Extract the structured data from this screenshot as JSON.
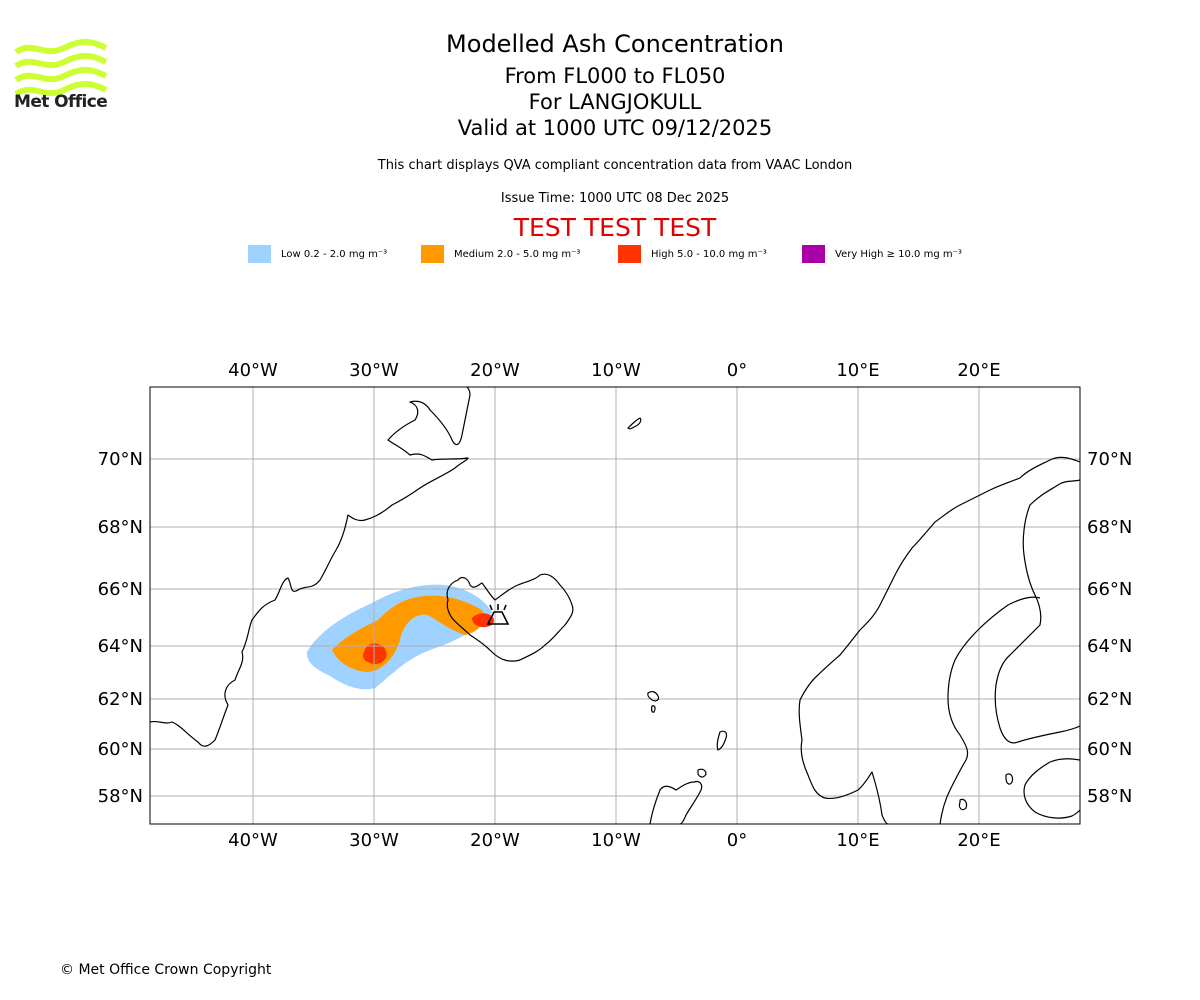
{
  "logo": {
    "text": "Met Office",
    "color": "#ccff33"
  },
  "header": {
    "title": "Modelled Ash Concentration",
    "levels": "From FL000 to FL050",
    "volcano": "For LANGJOKULL",
    "valid": "Valid at 1000 UTC 09/12/2025",
    "description": "This chart displays QVA compliant concentration data from VAAC London",
    "issue_time": "Issue Time: 1000 UTC 08 Dec 2025",
    "test_banner": "TEST TEST TEST"
  },
  "legend": [
    {
      "label": "Low 0.2 - 2.0 mg m⁻³",
      "color": "#a0d2ff"
    },
    {
      "label": "Medium 2.0 - 5.0 mg m⁻³",
      "color": "#ff9900"
    },
    {
      "label": "High 5.0 - 10.0 mg m⁻³",
      "color": "#ff3300"
    },
    {
      "label": "Very High  ≥  10.0 mg m⁻³",
      "color": "#aa00aa"
    }
  ],
  "map": {
    "lon_labels": [
      "40°W",
      "30°W",
      "20°W",
      "10°W",
      "0°",
      "10°E",
      "20°E"
    ],
    "lat_labels": [
      "70°N",
      "68°N",
      "66°N",
      "64°N",
      "62°N",
      "60°N",
      "58°N"
    ],
    "gridline_color": "#b0b0b0",
    "volcano_marker": "volcano-icon"
  },
  "footer": {
    "copyright": "© Met Office Crown Copyright"
  }
}
